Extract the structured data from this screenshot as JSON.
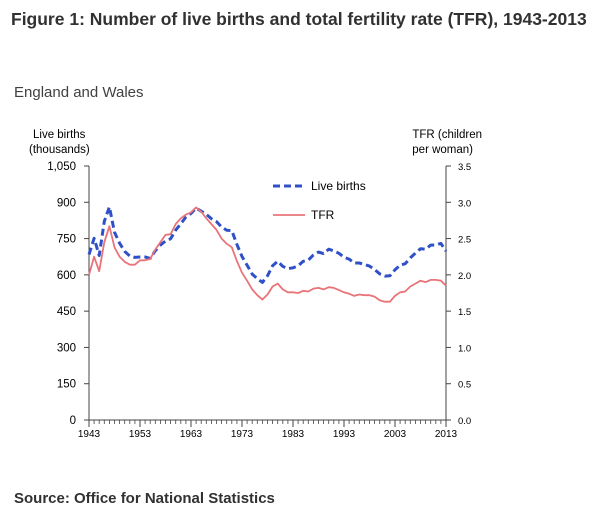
{
  "figure": {
    "title": "Figure 1: Number of live births and total fertility rate (TFR), 1943-2013",
    "subtitle": "England and Wales",
    "source": "Source: Office for National Statistics"
  },
  "chart_data": {
    "type": "line",
    "y_left_label_line1": "Live births",
    "y_left_label_line2": "(thousands)",
    "y_right_label_line1": "TFR (children",
    "y_right_label_line2": "per woman)",
    "x_ticks": [
      "1943",
      "1953",
      "1963",
      "1973",
      "1983",
      "1993",
      "2003",
      "2013"
    ],
    "y_left_ticks": [
      "0",
      "150",
      "300",
      "450",
      "600",
      "750",
      "900",
      "1,050"
    ],
    "y_right_ticks": [
      "0.0",
      "0.5",
      "1.0",
      "1.5",
      "2.0",
      "2.5",
      "3.0",
      "3.5"
    ],
    "xlim": [
      1943,
      2013
    ],
    "y_left_lim": [
      0,
      1050
    ],
    "y_right_lim": [
      0,
      3.5
    ],
    "legend_position": "top-right",
    "colors": {
      "live_births": "#3050c8",
      "tfr": "#e8747a"
    },
    "x": [
      1943,
      1944,
      1945,
      1946,
      1947,
      1948,
      1949,
      1950,
      1951,
      1952,
      1953,
      1954,
      1955,
      1956,
      1957,
      1958,
      1959,
      1960,
      1961,
      1962,
      1963,
      1964,
      1965,
      1966,
      1967,
      1968,
      1969,
      1970,
      1971,
      1972,
      1973,
      1974,
      1975,
      1976,
      1977,
      1978,
      1979,
      1980,
      1981,
      1982,
      1983,
      1984,
      1985,
      1986,
      1987,
      1988,
      1989,
      1990,
      1991,
      1992,
      1993,
      1994,
      1995,
      1996,
      1997,
      1998,
      1999,
      2000,
      2001,
      2002,
      2003,
      2004,
      2005,
      2006,
      2007,
      2008,
      2009,
      2010,
      2011,
      2012,
      2013
    ],
    "series": [
      {
        "name": "Live births",
        "axis": "left",
        "style": "dashed",
        "values": [
          684,
          751,
          680,
          821,
          881,
          776,
          731,
          697,
          678,
          672,
          674,
          674,
          668,
          700,
          723,
          740,
          749,
          785,
          811,
          839,
          854,
          876,
          863,
          850,
          832,
          820,
          798,
          784,
          783,
          726,
          676,
          640,
          603,
          584,
          569,
          596,
          638,
          656,
          635,
          626,
          629,
          637,
          656,
          661,
          682,
          694,
          688,
          706,
          699,
          689,
          673,
          665,
          649,
          649,
          643,
          636,
          622,
          604,
          595,
          596,
          621,
          640,
          646,
          670,
          690,
          708,
          706,
          723,
          724,
          730,
          698
        ]
      },
      {
        "name": "TFR",
        "axis": "right",
        "style": "solid",
        "values": [
          2.0,
          2.25,
          2.05,
          2.45,
          2.67,
          2.38,
          2.25,
          2.18,
          2.14,
          2.14,
          2.2,
          2.2,
          2.22,
          2.35,
          2.45,
          2.55,
          2.56,
          2.7,
          2.78,
          2.83,
          2.86,
          2.93,
          2.87,
          2.78,
          2.7,
          2.62,
          2.5,
          2.43,
          2.38,
          2.19,
          2.03,
          1.92,
          1.8,
          1.72,
          1.66,
          1.73,
          1.84,
          1.88,
          1.8,
          1.76,
          1.76,
          1.75,
          1.78,
          1.77,
          1.81,
          1.82,
          1.8,
          1.83,
          1.82,
          1.79,
          1.76,
          1.74,
          1.71,
          1.73,
          1.72,
          1.72,
          1.7,
          1.65,
          1.63,
          1.63,
          1.71,
          1.76,
          1.77,
          1.84,
          1.88,
          1.92,
          1.9,
          1.93,
          1.93,
          1.92,
          1.85
        ]
      }
    ]
  }
}
